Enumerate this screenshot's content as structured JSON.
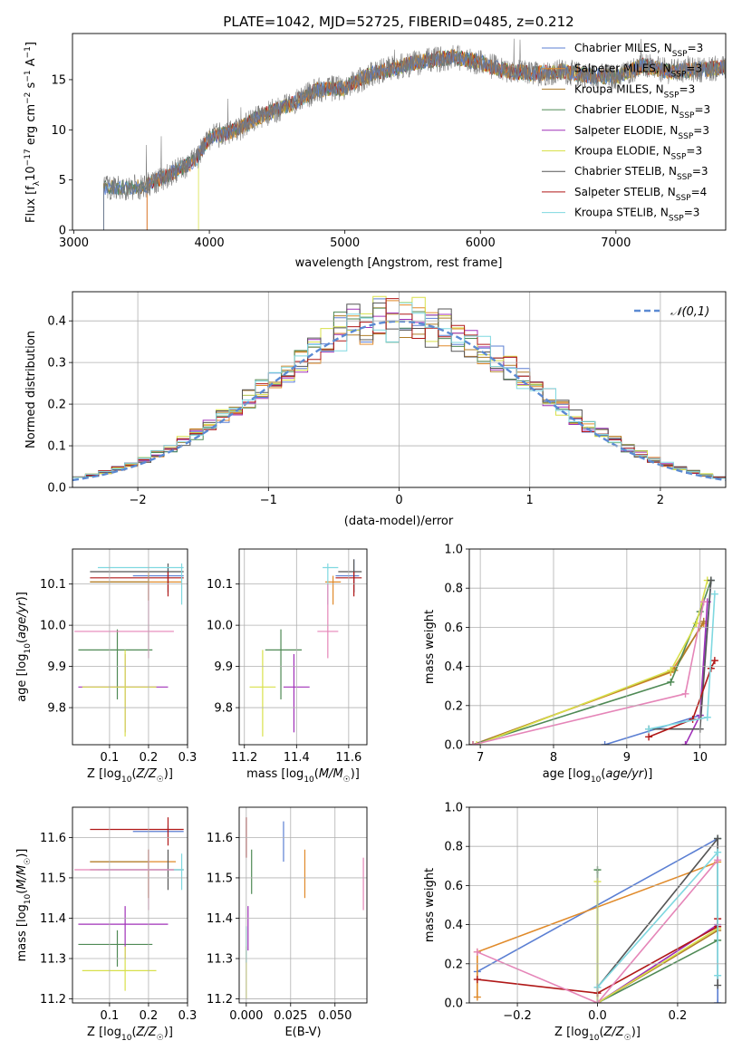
{
  "figure_title": "PLATE=1042, MJD=52725, FIBERID=0485, z=0.212",
  "colors": {
    "Chabrier MILES": "#5b7fd3",
    "Salpeter MILES": "#e08a2a",
    "Kroupa MILES": "#b07d28",
    "Chabrier ELODIE": "#4f8a55",
    "Salpeter ELODIE": "#a030b8",
    "Kroupa ELODIE": "#d8e04a",
    "Chabrier STELIB": "#555555",
    "Salpeter STELIB": "#b01818",
    "Kroupa STELIB": "#7fd8e0",
    "pink": "#e585b8"
  },
  "chart_data": [
    {
      "type": "line",
      "id": "spectrum",
      "title": "PLATE=1042, MJD=52725, FIBERID=0485, z=0.212",
      "xlabel": "wavelength [Angstrom, rest frame]",
      "ylabel": "Flux [f_λ 10^-17 erg cm^-2 s^-1 A^-1]",
      "xlim": [
        2990,
        7810
      ],
      "ylim": [
        0,
        19.6
      ],
      "xticks": [
        3000,
        4000,
        5000,
        6000,
        7000
      ],
      "yticks": [
        0,
        5,
        10,
        15
      ],
      "legend": [
        "Chabrier MILES, N_SSP=3",
        "Salpeter MILES, N_SSP=3",
        "Kroupa MILES, N_SSP=3",
        "Chabrier ELODIE, N_SSP=3",
        "Salpeter ELODIE, N_SSP=3",
        "Kroupa ELODIE, N_SSP=3",
        "Chabrier STELIB, N_SSP=3",
        "Salpeter STELIB, N_SSP=4",
        "Kroupa STELIB, N_SSP=3"
      ],
      "legend_placement": "right",
      "data_range": [
        3220,
        7810
      ],
      "continuum": [
        [
          3220,
          4.2
        ],
        [
          3500,
          4.3
        ],
        [
          3700,
          5.5
        ],
        [
          3900,
          7.0
        ],
        [
          4000,
          9.2
        ],
        [
          4200,
          10.0
        ],
        [
          4400,
          11.5
        ],
        [
          4600,
          12.5
        ],
        [
          4800,
          14.0
        ],
        [
          5000,
          14.2
        ],
        [
          5200,
          15.6
        ],
        [
          5500,
          16.6
        ],
        [
          5800,
          17.3
        ],
        [
          6000,
          16.7
        ],
        [
          6200,
          15.8
        ],
        [
          6400,
          15.6
        ],
        [
          6600,
          15.8
        ],
        [
          6800,
          15.4
        ],
        [
          7000,
          15.3
        ],
        [
          7200,
          16.4
        ],
        [
          7400,
          15.8
        ],
        [
          7600,
          16.0
        ],
        [
          7810,
          16.2
        ]
      ],
      "model_starts": {
        "Salpeter MILES": 3540,
        "Kroupa ELODIE": 3920,
        "Salpeter STELIB": 3540
      }
    },
    {
      "type": "histogram",
      "id": "residuals",
      "xlabel": "(data-model)/error",
      "ylabel": "Normed distribution",
      "xlim": [
        -2.5,
        2.5
      ],
      "ylim": [
        0,
        0.47
      ],
      "xticks": [
        -2,
        -1,
        0,
        1,
        2
      ],
      "yticks": [
        0.0,
        0.1,
        0.2,
        0.3,
        0.4
      ],
      "bin_width": 0.1,
      "reference_curve": "𝒩(0,1)",
      "legend_placement": "top-right",
      "grid": true
    },
    {
      "type": "scatter",
      "id": "age_vs_Z",
      "xlabel": "Z [log10(Z/Z☉)]",
      "ylabel": "age  [log10(age/yr)]",
      "xlim": [
        0.005,
        0.3
      ],
      "ylim": [
        9.71,
        10.185
      ],
      "xticks": [
        0.1,
        0.2,
        0.3
      ],
      "yticks": [
        9.8,
        9.9,
        10.0,
        10.1
      ],
      "points": [
        {
          "c": "Chabrier MILES",
          "x": 0.25,
          "y": 10.12,
          "xerr": [
            0.16,
            0.29
          ],
          "yerr": [
            10.1,
            10.14
          ]
        },
        {
          "c": "Salpeter MILES",
          "x": 0.2,
          "y": 10.105,
          "xerr": [
            0.05,
            0.285
          ],
          "yerr": [
            10.06,
            10.13
          ]
        },
        {
          "c": "Kroupa MILES",
          "x": 0.2,
          "y": 10.105,
          "xerr": [
            0.05,
            0.2
          ],
          "yerr": [
            10.06,
            10.12
          ]
        },
        {
          "c": "Chabrier ELODIE",
          "x": 0.12,
          "y": 9.94,
          "xerr": [
            0.02,
            0.21
          ],
          "yerr": [
            9.82,
            9.99
          ]
        },
        {
          "c": "Salpeter ELODIE",
          "x": 0.14,
          "y": 9.85,
          "xerr": [
            0.02,
            0.25
          ],
          "yerr": [
            9.74,
            9.93
          ]
        },
        {
          "c": "Kroupa ELODIE",
          "x": 0.14,
          "y": 9.85,
          "xerr": [
            0.03,
            0.22
          ],
          "yerr": [
            9.73,
            9.94
          ]
        },
        {
          "c": "Chabrier STELIB",
          "x": 0.25,
          "y": 10.13,
          "xerr": [
            0.05,
            0.29
          ],
          "yerr": [
            10.08,
            10.15
          ]
        },
        {
          "c": "Salpeter STELIB",
          "x": 0.25,
          "y": 10.115,
          "xerr": [
            0.05,
            0.29
          ],
          "yerr": [
            10.07,
            10.13
          ]
        },
        {
          "c": "Kroupa STELIB",
          "x": 0.285,
          "y": 10.14,
          "xerr": [
            0.07,
            0.29
          ],
          "yerr": [
            10.05,
            10.15
          ]
        },
        {
          "c": "pink",
          "x": 0.2,
          "y": 9.985,
          "xerr": [
            0.01,
            0.265
          ],
          "yerr": [
            9.92,
            10.1
          ]
        }
      ]
    },
    {
      "type": "scatter",
      "id": "age_vs_mass",
      "xlabel": "mass [log10(M/M☉)]",
      "xlim": [
        11.18,
        11.67
      ],
      "ylim": [
        9.71,
        10.185
      ],
      "xticks": [
        11.2,
        11.4,
        11.6
      ],
      "yticks": [
        9.8,
        9.9,
        10.0,
        10.1
      ],
      "points": [
        {
          "c": "Chabrier MILES",
          "x": 11.62,
          "y": 10.12,
          "xerr": [
            11.55,
            11.64
          ],
          "yerr": [
            10.08,
            10.16
          ]
        },
        {
          "c": "Salpeter MILES",
          "x": 11.54,
          "y": 10.105,
          "xerr": [
            11.51,
            11.57
          ],
          "yerr": [
            10.05,
            10.12
          ]
        },
        {
          "c": "Chabrier ELODIE",
          "x": 11.34,
          "y": 9.94,
          "xerr": [
            11.28,
            11.42
          ],
          "yerr": [
            9.82,
            9.99
          ]
        },
        {
          "c": "Salpeter ELODIE",
          "x": 11.39,
          "y": 9.85,
          "xerr": [
            11.35,
            11.45
          ],
          "yerr": [
            9.74,
            9.93
          ]
        },
        {
          "c": "Kroupa ELODIE",
          "x": 11.27,
          "y": 9.85,
          "xerr": [
            11.22,
            11.32
          ],
          "yerr": [
            9.73,
            9.94
          ]
        },
        {
          "c": "Chabrier STELIB",
          "x": 11.62,
          "y": 10.13,
          "xerr": [
            11.56,
            11.65
          ],
          "yerr": [
            10.08,
            10.16
          ]
        },
        {
          "c": "Salpeter STELIB",
          "x": 11.62,
          "y": 10.115,
          "xerr": [
            11.55,
            11.65
          ],
          "yerr": [
            10.07,
            10.13
          ]
        },
        {
          "c": "Kroupa STELIB",
          "x": 11.52,
          "y": 10.14,
          "xerr": [
            11.5,
            11.56
          ],
          "yerr": [
            10.05,
            10.15
          ]
        },
        {
          "c": "pink",
          "x": 11.52,
          "y": 9.985,
          "xerr": [
            11.48,
            11.56
          ],
          "yerr": [
            9.92,
            10.1
          ]
        }
      ]
    },
    {
      "type": "line",
      "id": "cumweight_age",
      "xlabel": "age  [log10(age/yr)]",
      "ylabel": "mass weight",
      "xlim": [
        6.85,
        10.35
      ],
      "ylim": [
        0,
        1.0
      ],
      "xticks": [
        7,
        8,
        9,
        10
      ],
      "yticks": [
        0.0,
        0.2,
        0.4,
        0.6,
        0.8,
        1.0
      ],
      "series": [
        {
          "c": "Chabrier MILES",
          "x": [
            8.7,
            10.0,
            10.15
          ],
          "y": [
            0.0,
            0.15,
            0.84
          ]
        },
        {
          "c": "Salpeter MILES",
          "x": [
            6.9,
            9.6,
            10.05
          ],
          "y": [
            0.0,
            0.37,
            0.62
          ]
        },
        {
          "c": "Kroupa MILES",
          "x": [
            6.9,
            9.65,
            10.05
          ],
          "y": [
            0.0,
            0.38,
            0.63
          ]
        },
        {
          "c": "Chabrier ELODIE",
          "x": [
            6.9,
            9.6,
            10.0,
            10.15
          ],
          "y": [
            0.0,
            0.32,
            0.68,
            0.84
          ]
        },
        {
          "c": "Salpeter ELODIE",
          "x": [
            9.8,
            10.0,
            10.1
          ],
          "y": [
            0.0,
            0.15,
            0.73
          ]
        },
        {
          "c": "Kroupa ELODIE",
          "x": [
            6.95,
            9.6,
            9.95,
            10.1
          ],
          "y": [
            0.0,
            0.38,
            0.62,
            0.84
          ]
        },
        {
          "c": "Chabrier STELIB",
          "x": [
            9.3,
            10.0,
            10.15
          ],
          "y": [
            0.08,
            0.08,
            0.84
          ]
        },
        {
          "c": "Salpeter STELIB",
          "x": [
            9.3,
            9.9,
            10.15,
            10.2
          ],
          "y": [
            0.04,
            0.13,
            0.39,
            0.43
          ]
        },
        {
          "c": "Kroupa STELIB",
          "x": [
            9.3,
            10.1,
            10.2
          ],
          "y": [
            0.08,
            0.14,
            0.77
          ]
        },
        {
          "c": "pink",
          "x": [
            6.9,
            9.8,
            10.05
          ],
          "y": [
            0.0,
            0.26,
            0.73
          ]
        }
      ]
    },
    {
      "type": "scatter",
      "id": "mass_vs_Z",
      "xlabel": "Z [log10(Z/Z☉)]",
      "ylabel": "mass [log10(M/M☉)]",
      "xlim": [
        0.005,
        0.3
      ],
      "ylim": [
        11.19,
        11.675
      ],
      "xticks": [
        0.1,
        0.2,
        0.3
      ],
      "yticks": [
        11.2,
        11.3,
        11.4,
        11.5,
        11.6
      ],
      "points": [
        {
          "c": "Chabrier MILES",
          "x": 0.25,
          "y": 11.615,
          "xerr": [
            0.16,
            0.29
          ],
          "yerr": [
            11.6,
            11.63
          ]
        },
        {
          "c": "Salpeter MILES",
          "x": 0.2,
          "y": 11.54,
          "xerr": [
            0.05,
            0.27
          ],
          "yerr": [
            11.45,
            11.57
          ]
        },
        {
          "c": "Kroupa MILES",
          "x": 0.2,
          "y": 11.54,
          "xerr": [
            0.05,
            0.2
          ],
          "yerr": [
            11.45,
            11.57
          ]
        },
        {
          "c": "Chabrier ELODIE",
          "x": 0.12,
          "y": 11.335,
          "xerr": [
            0.02,
            0.21
          ],
          "yerr": [
            11.28,
            11.37
          ]
        },
        {
          "c": "Salpeter ELODIE",
          "x": 0.14,
          "y": 11.385,
          "xerr": [
            0.02,
            0.25
          ],
          "yerr": [
            11.3,
            11.43
          ]
        },
        {
          "c": "Kroupa ELODIE",
          "x": 0.14,
          "y": 11.27,
          "xerr": [
            0.03,
            0.22
          ],
          "yerr": [
            11.22,
            11.33
          ]
        },
        {
          "c": "Chabrier STELIB",
          "x": 0.25,
          "y": 11.52,
          "xerr": [
            0.05,
            0.29
          ],
          "yerr": [
            11.47,
            11.57
          ]
        },
        {
          "c": "Salpeter STELIB",
          "x": 0.25,
          "y": 11.62,
          "xerr": [
            0.05,
            0.29
          ],
          "yerr": [
            11.58,
            11.65
          ]
        },
        {
          "c": "Kroupa STELIB",
          "x": 0.285,
          "y": 11.52,
          "xerr": [
            0.07,
            0.29
          ],
          "yerr": [
            11.47,
            11.56
          ]
        },
        {
          "c": "pink",
          "x": 0.2,
          "y": 11.52,
          "xerr": [
            0.01,
            0.265
          ],
          "yerr": [
            11.42,
            11.57
          ]
        }
      ]
    },
    {
      "type": "scatter",
      "id": "mass_vs_ebv",
      "xlabel": "E(B-V)",
      "xlim": [
        -0.004,
        0.068
      ],
      "ylim": [
        11.19,
        11.675
      ],
      "xticks": [
        0.0,
        0.025,
        0.05
      ],
      "xticklabels": [
        "0.000",
        "0.025",
        "0.050"
      ],
      "yticks": [
        11.2,
        11.3,
        11.4,
        11.5,
        11.6
      ],
      "points": [
        {
          "c": "Chabrier MILES",
          "x": 0.021,
          "y": 11.6,
          "yerr": [
            11.54,
            11.64
          ]
        },
        {
          "c": "Salpeter MILES",
          "x": 0.033,
          "y": 11.51,
          "yerr": [
            11.45,
            11.57
          ]
        },
        {
          "c": "Chabrier ELODIE",
          "x": 0.003,
          "y": 11.51,
          "yerr": [
            11.46,
            11.57
          ]
        },
        {
          "c": "Salpeter ELODIE",
          "x": 0.001,
          "y": 11.38,
          "yerr": [
            11.32,
            11.43
          ]
        },
        {
          "c": "Kroupa ELODIE",
          "x": 0.0,
          "y": 11.27,
          "yerr": [
            11.2,
            11.33
          ]
        },
        {
          "c": "Salpeter STELIB",
          "x": 0.0,
          "y": 11.6,
          "yerr": [
            11.55,
            11.65
          ]
        },
        {
          "c": "Kroupa STELIB",
          "x": 0.0,
          "y": 11.34,
          "yerr": [
            11.29,
            11.38
          ]
        },
        {
          "c": "pink",
          "x": 0.066,
          "y": 11.48,
          "yerr": [
            11.42,
            11.55
          ]
        }
      ]
    },
    {
      "type": "line",
      "id": "cumweight_Z",
      "xlabel": "Z [log10(Z/Z☉)]",
      "ylabel": "mass weight",
      "xlim": [
        -0.32,
        0.32
      ],
      "ylim": [
        0,
        1.0
      ],
      "xticks": [
        -0.2,
        0.0,
        0.2
      ],
      "xticklabels": [
        "−0.2",
        "0.0",
        "0.2"
      ],
      "yticks": [
        0.0,
        0.2,
        0.4,
        0.6,
        0.8,
        1.0
      ],
      "series": [
        {
          "c": "Chabrier MILES",
          "x": [
            -0.3,
            0.3,
            0.3
          ],
          "y": [
            0.16,
            0.84,
            0.0
          ]
        },
        {
          "c": "Salpeter MILES",
          "x": [
            -0.3,
            -0.3,
            0.3
          ],
          "y": [
            0.03,
            0.26,
            0.72
          ]
        },
        {
          "c": "Kroupa MILES",
          "x": [
            0.0,
            0.3
          ],
          "y": [
            0.0,
            0.37
          ]
        },
        {
          "c": "Chabrier ELODIE",
          "x": [
            0.0,
            0.0,
            0.3,
            0.3
          ],
          "y": [
            0.68,
            0.0,
            0.32,
            0.84
          ]
        },
        {
          "c": "Salpeter ELODIE",
          "x": [
            0.0,
            0.3
          ],
          "y": [
            0.0,
            0.4
          ]
        },
        {
          "c": "Kroupa ELODIE",
          "x": [
            0.0,
            0.0,
            0.3
          ],
          "y": [
            0.62,
            0.0,
            0.38
          ]
        },
        {
          "c": "Chabrier STELIB",
          "x": [
            0.0,
            0.3,
            0.3
          ],
          "y": [
            0.08,
            0.84,
            0.09
          ]
        },
        {
          "c": "Salpeter STELIB",
          "x": [
            -0.3,
            0.0,
            0.3,
            0.3
          ],
          "y": [
            0.12,
            0.05,
            0.39,
            0.43
          ]
        },
        {
          "c": "Kroupa STELIB",
          "x": [
            0.0,
            0.3,
            0.3
          ],
          "y": [
            0.08,
            0.77,
            0.14
          ]
        },
        {
          "c": "pink",
          "x": [
            -0.3,
            0.0,
            0.3
          ],
          "y": [
            0.26,
            0.0,
            0.73
          ]
        }
      ]
    }
  ]
}
